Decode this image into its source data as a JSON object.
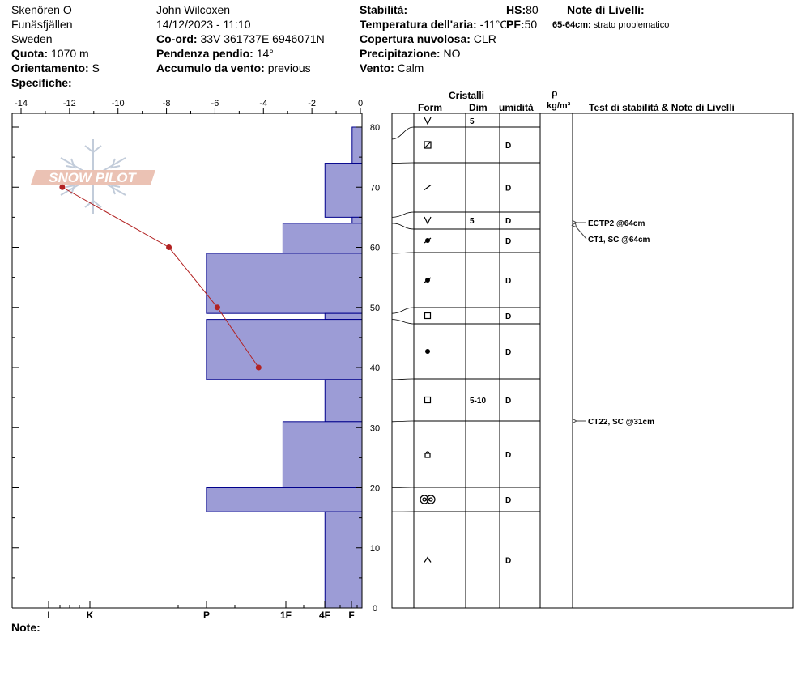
{
  "header": {
    "location": "Skenören O",
    "region": "Funäsfjällen",
    "country": "Sweden",
    "elevation_label": "Quota:",
    "elevation_value": "1070 m",
    "aspect_label": "Orientamento:",
    "aspect_value": "S",
    "specifics_label": "Specifiche:",
    "observer": "John Wilcoxen",
    "datetime": "14/12/2023 - 11:10",
    "coord_label": "Co-ord:",
    "coord_value": "33V 361737E 6946071N",
    "slope_label": "Pendenza pendio:",
    "slope_value": "14°",
    "wind_load_label": "Accumulo da vento:",
    "wind_load_value": "previous",
    "stability_label": "Stabilità:",
    "air_temp_label": "Temperatura dell'aria:",
    "air_temp_value": "-11°C",
    "cloud_label": "Copertura nuvolosa:",
    "cloud_value": "CLR",
    "precip_label": "Precipitazione:",
    "precip_value": "NO",
    "wind_label": "Vento:",
    "wind_value": "Calm",
    "hs_label": "HS:",
    "hs_value": "80",
    "pf_label": "PF:",
    "pf_value": "50",
    "layer_notes_label": "Note di Livelli:",
    "layer_note_depth": "65-64cm:",
    "layer_note_text": "strato problematico",
    "notes_label": "Note:"
  },
  "logo_text": "SNOW PILOT",
  "table_headers": {
    "crystals": "Cristalli",
    "form": "Form",
    "size": "Dim",
    "moisture": "umidità",
    "rho": "ρ",
    "density_unit": "kg/m³",
    "stability_notes": "Test di stabilità & Note di Livelli"
  },
  "chart_data": {
    "type": "snow_profile",
    "temperature_axis": {
      "range": [
        -14,
        0
      ],
      "ticks": [
        "-14",
        "-12",
        "-10",
        "-8",
        "-6",
        "-4",
        "-2",
        "0"
      ]
    },
    "height_axis": {
      "unit": "cm",
      "range": [
        0,
        80
      ],
      "ticks": [
        "0",
        "10",
        "20",
        "30",
        "40",
        "50",
        "60",
        "70",
        "80"
      ]
    },
    "hardness_ticks": [
      "I",
      "K",
      "P",
      "1F",
      "4F",
      "F"
    ],
    "temperature_profile": [
      {
        "height": 70,
        "temp": -12.3
      },
      {
        "height": 60,
        "temp": -7.9
      },
      {
        "height": 50,
        "temp": -5.9
      },
      {
        "height": 40,
        "temp": -4.2
      }
    ],
    "hardness_layers": [
      {
        "top": 80,
        "bottom": 74,
        "hardness_offset": 0.4
      },
      {
        "top": 74,
        "bottom": 65,
        "hardness_offset": 1.5
      },
      {
        "top": 65,
        "bottom": 64,
        "hardness_offset": 0.4
      },
      {
        "top": 64,
        "bottom": 59,
        "hardness_offset": 3.2
      },
      {
        "top": 59,
        "bottom": 49,
        "hardness_offset": 6.3
      },
      {
        "top": 49,
        "bottom": 48,
        "hardness_offset": 1.5
      },
      {
        "top": 48,
        "bottom": 38,
        "hardness_offset": 6.3
      },
      {
        "top": 38,
        "bottom": 31,
        "hardness_offset": 1.5
      },
      {
        "top": 31,
        "bottom": 20,
        "hardness_offset": 3.2
      },
      {
        "top": 20,
        "bottom": 16,
        "hardness_offset": 6.3
      },
      {
        "top": 16,
        "bottom": 0,
        "hardness_offset": 1.5
      }
    ],
    "layers_table": [
      {
        "top": 80,
        "bottom": 78,
        "form": "form-v",
        "size": "5",
        "moisture": ""
      },
      {
        "top": 78,
        "bottom": 74,
        "form": "form-box-slash",
        "size": "",
        "moisture": "D"
      },
      {
        "top": 74,
        "bottom": 65,
        "form": "form-slash",
        "size": "",
        "moisture": "D"
      },
      {
        "top": 65,
        "bottom": 64,
        "form": "form-v",
        "size": "5",
        "moisture": "D"
      },
      {
        "top": 64,
        "bottom": 59,
        "form": "form-dot-slash",
        "size": "",
        "moisture": "D"
      },
      {
        "top": 59,
        "bottom": 49,
        "form": "form-dot-slash",
        "size": "",
        "moisture": "D"
      },
      {
        "top": 49,
        "bottom": 48,
        "form": "form-square",
        "size": "",
        "moisture": "D"
      },
      {
        "top": 48,
        "bottom": 38,
        "form": "form-dot",
        "size": "",
        "moisture": "D"
      },
      {
        "top": 38,
        "bottom": 31,
        "form": "form-square",
        "size": "5-10",
        "moisture": "D"
      },
      {
        "top": 31,
        "bottom": 20,
        "form": "form-lock",
        "size": "",
        "moisture": "D"
      },
      {
        "top": 20,
        "bottom": 16,
        "form": "form-double-ring",
        "size": "",
        "moisture": "D"
      },
      {
        "top": 16,
        "bottom": 0,
        "form": "form-caret",
        "size": "",
        "moisture": "D"
      }
    ],
    "stability_tests": [
      {
        "text": "ECTP2 @64cm"
      },
      {
        "text": "CT1, SC @64cm"
      },
      {
        "text": "CT22, SC @31cm"
      }
    ]
  },
  "colors": {
    "hardness_fill": "#9c9cd6",
    "hardness_stroke": "#00008b",
    "temperature_line": "#b22222",
    "logo": "#e8b8a8"
  }
}
